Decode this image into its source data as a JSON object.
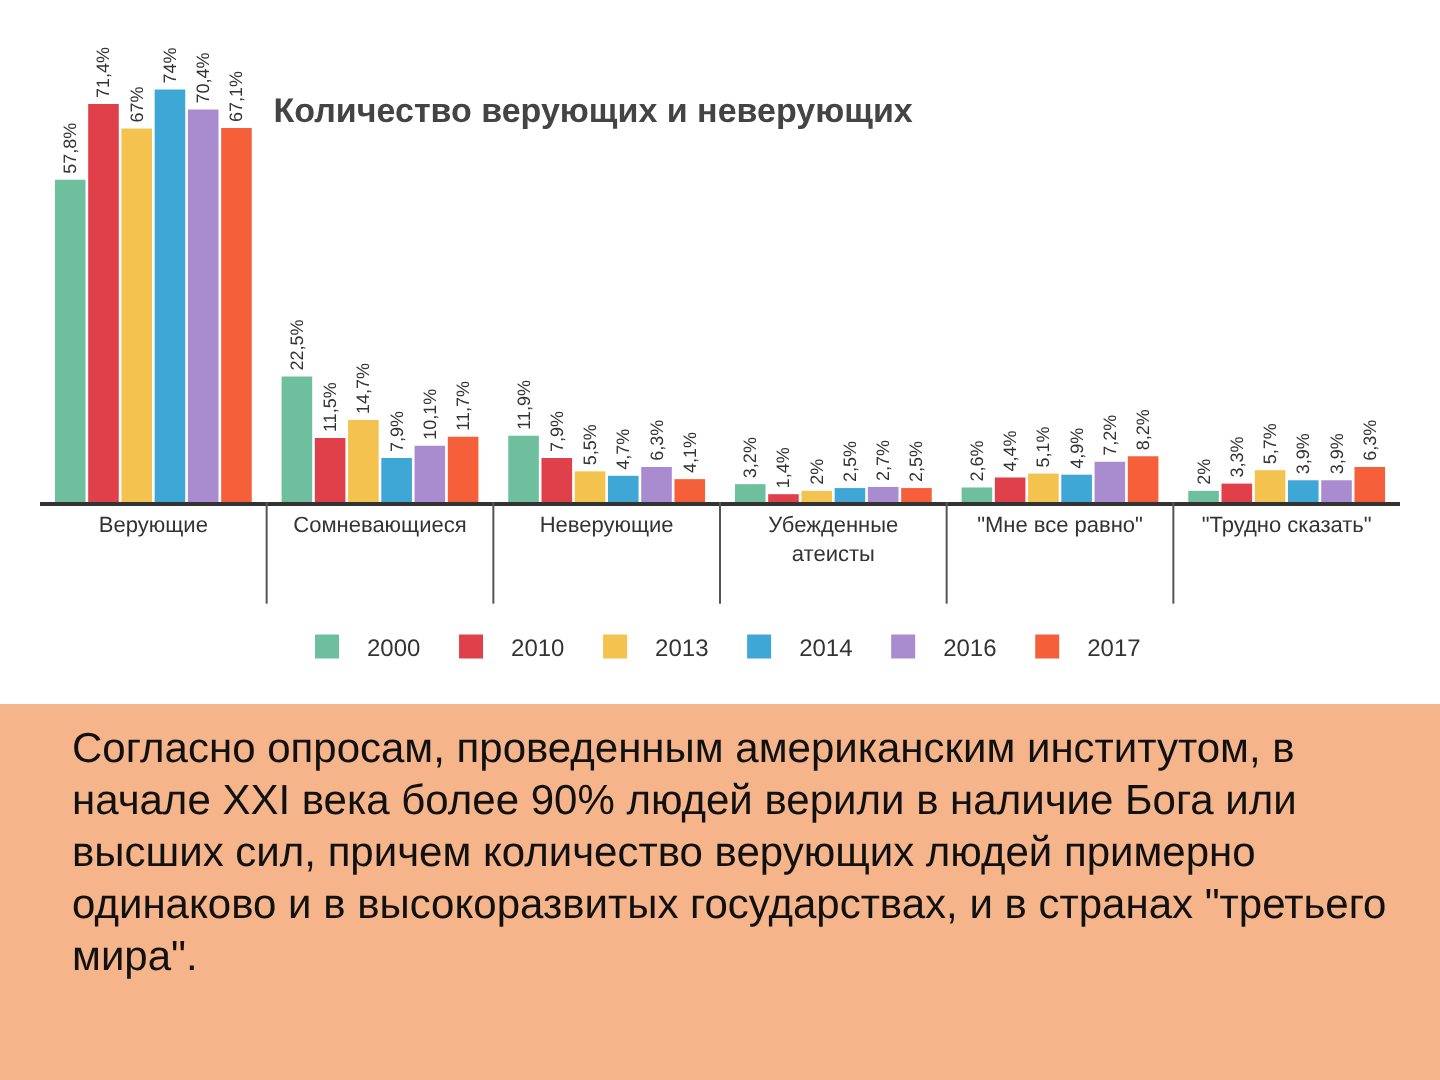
{
  "chart_data": {
    "type": "bar",
    "title": "Количество верующих и неверующих",
    "categories": [
      "Верующие",
      "Сомневающиеся",
      "Неверующие",
      "Убежденные атеисты",
      "\"Мне все равно\"",
      "\"Трудно сказать\""
    ],
    "series": [
      {
        "name": "2000",
        "color": "#6dbf9e",
        "values": [
          57.8,
          22.5,
          11.9,
          3.2,
          2.6,
          2
        ],
        "value_labels": [
          "57,8%",
          "22,5%",
          "11,9%",
          "3,2%",
          "2,6%",
          "2%"
        ]
      },
      {
        "name": "2010",
        "color": "#e0404a",
        "values": [
          71.4,
          11.5,
          7.9,
          1.4,
          4.4,
          3.3
        ],
        "value_labels": [
          "71,4%",
          "11,5%",
          "7,9%",
          "1,4%",
          "4,4%",
          "3,3%"
        ]
      },
      {
        "name": "2013",
        "color": "#f4c34f",
        "values": [
          67,
          14.7,
          5.5,
          2,
          5.1,
          5.7
        ],
        "value_labels": [
          "67%",
          "14,7%",
          "5,5%",
          "2%",
          "5,1%",
          "5,7%"
        ]
      },
      {
        "name": "2014",
        "color": "#3fa7d6",
        "values": [
          74,
          7.9,
          4.7,
          2.5,
          4.9,
          3.9
        ],
        "value_labels": [
          "74%",
          "7,9%",
          "4,7%",
          "2,5%",
          "4,9%",
          "3,9%"
        ]
      },
      {
        "name": "2016",
        "color": "#a98bd0",
        "values": [
          70.4,
          10.1,
          6.3,
          2.7,
          7.2,
          3.9
        ],
        "value_labels": [
          "70,4%",
          "10,1%",
          "6,3%",
          "2,7%",
          "7,2%",
          "3,9%"
        ]
      },
      {
        "name": "2017",
        "color": "#f5603a",
        "values": [
          67.1,
          11.7,
          4.1,
          2.5,
          8.2,
          6.3
        ],
        "value_labels": [
          "67,1%",
          "11,7%",
          "4,1%",
          "2,5%",
          "8,2%",
          "6,3%"
        ]
      }
    ],
    "legend": "bottom",
    "grid": false,
    "annotations": [
      "Согласно опросам, проведенным американским институтом, в начале XXI века более 90% людей верили в наличие Бога или высших сил, причем количество верующих людей примерно одинаково и в высокоразвитых государствах, и в странах \"третьего мира\"."
    ]
  }
}
